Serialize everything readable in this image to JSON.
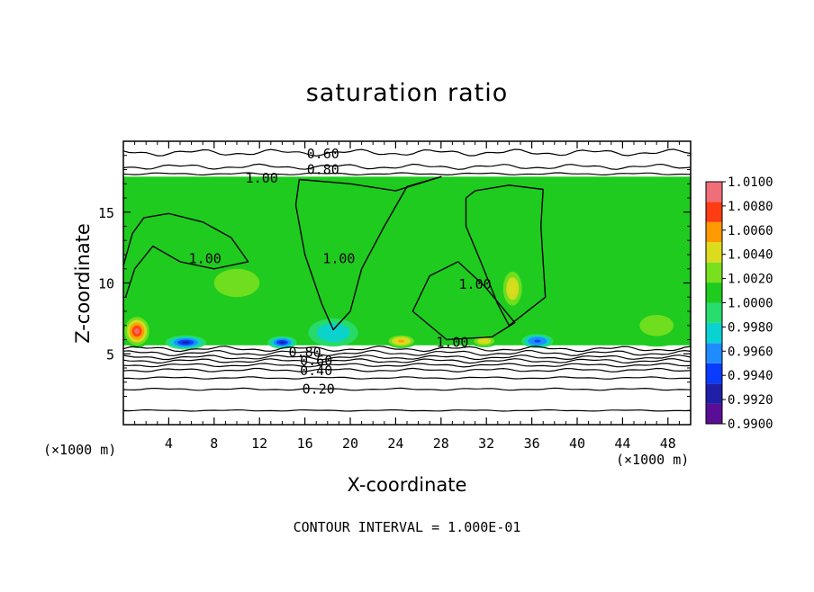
{
  "chart_data": {
    "type": "heatmap",
    "title": "saturation ratio",
    "xlabel": "X-coordinate",
    "ylabel": "Z-coordinate",
    "x_unit_left": "(×1000 m)",
    "x_unit_right": "(×1000 m)",
    "footer": "CONTOUR INTERVAL = 1.000E-01",
    "xlim": [
      0,
      50
    ],
    "ylim": [
      0,
      20
    ],
    "x_ticks": [
      4,
      8,
      12,
      16,
      20,
      24,
      28,
      32,
      36,
      40,
      44,
      48
    ],
    "y_ticks": [
      5,
      10,
      15
    ],
    "x_tick_labels": [
      "4",
      "8",
      "12",
      "16",
      "20",
      "24",
      "28",
      "32",
      "36",
      "40",
      "44",
      "48"
    ],
    "y_tick_labels": [
      "5",
      "10",
      "15"
    ],
    "colorbar": {
      "min": 0.99,
      "max": 1.01,
      "labels": [
        "1.0100",
        "1.0080",
        "1.0060",
        "1.0040",
        "1.0020",
        "1.0000",
        "0.9980",
        "0.9960",
        "0.9940",
        "0.9920",
        "0.9900"
      ],
      "colors": [
        "#5a0e96",
        "#1f1fa8",
        "#0a3cff",
        "#1e8cff",
        "#0ad2d2",
        "#28dc6e",
        "#1ecb1e",
        "#78e01e",
        "#dcdc1e",
        "#ff9a00",
        "#ff3c14",
        "#f06e78"
      ]
    },
    "filled_region": {
      "x": [
        0,
        50
      ],
      "z": [
        5.6,
        17.5
      ],
      "base_value": 1.0
    },
    "anomalies": [
      {
        "x": 1.2,
        "z": 6.6,
        "value": 1.009,
        "rx": 1.3,
        "rz": 1.2
      },
      {
        "x": 34.3,
        "z": 9.6,
        "value": 1.005,
        "rx": 1.1,
        "rz": 1.6
      },
      {
        "x": 24.5,
        "z": 5.9,
        "value": 1.006,
        "rx": 1.4,
        "rz": 0.5
      },
      {
        "x": 31.8,
        "z": 5.9,
        "value": 1.005,
        "rx": 1.2,
        "rz": 0.45
      },
      {
        "x": 5.5,
        "z": 5.8,
        "value": 0.993,
        "rx": 1.8,
        "rz": 0.5
      },
      {
        "x": 14.0,
        "z": 5.8,
        "value": 0.993,
        "rx": 1.3,
        "rz": 0.45
      },
      {
        "x": 36.5,
        "z": 5.9,
        "value": 0.994,
        "rx": 1.4,
        "rz": 0.5
      },
      {
        "x": 18.5,
        "z": 6.5,
        "value": 0.997,
        "rx": 2.2,
        "rz": 1.0
      },
      {
        "x": 10.0,
        "z": 10.0,
        "value": 1.002,
        "rx": 4.0,
        "rz": 2.0
      },
      {
        "x": 47.0,
        "z": 7.0,
        "value": 1.002,
        "rx": 3.0,
        "rz": 1.5
      }
    ],
    "contour_labels": [
      {
        "text": "0.60",
        "x": 17.6,
        "z": 19.1
      },
      {
        "text": "0.80",
        "x": 17.6,
        "z": 18.0
      },
      {
        "text": "1.00",
        "x": 12.2,
        "z": 17.4
      },
      {
        "text": "1.00",
        "x": 7.2,
        "z": 11.7
      },
      {
        "text": "1.00",
        "x": 19.0,
        "z": 11.7
      },
      {
        "text": "1.00",
        "x": 31.0,
        "z": 9.9
      },
      {
        "text": "1.00",
        "x": 29.0,
        "z": 5.8
      },
      {
        "text": "0.80",
        "x": 16.0,
        "z": 5.1
      },
      {
        "text": "0.60",
        "x": 17.0,
        "z": 4.5
      },
      {
        "text": "0.40",
        "x": 17.0,
        "z": 3.8
      },
      {
        "text": "0.20",
        "x": 17.2,
        "z": 2.5
      }
    ],
    "lower_contours": [
      {
        "value": 0.9,
        "z": 5.35,
        "amp": 0.12
      },
      {
        "value": 0.8,
        "z": 5.05,
        "amp": 0.12
      },
      {
        "value": 0.7,
        "z": 4.75,
        "amp": 0.1
      },
      {
        "value": 0.6,
        "z": 4.5,
        "amp": 0.1
      },
      {
        "value": 0.5,
        "z": 4.2,
        "amp": 0.08
      },
      {
        "value": 0.4,
        "z": 3.85,
        "amp": 0.08
      },
      {
        "value": 0.3,
        "z": 3.3,
        "amp": 0.05
      },
      {
        "value": 0.2,
        "z": 2.5,
        "amp": 0.05
      },
      {
        "value": 0.1,
        "z": 1.0,
        "amp": 0.03
      }
    ],
    "upper_contours": [
      {
        "value": 0.6,
        "z": 19.2,
        "amp": 0.15
      },
      {
        "value": 0.8,
        "z": 18.2,
        "amp": 0.12
      },
      {
        "value": 0.9,
        "z": 17.7,
        "amp": 0.05
      }
    ],
    "unity_contours": [
      [
        [
          0,
          11.2
        ],
        [
          0.8,
          13.5
        ],
        [
          1.8,
          14.6
        ],
        [
          4.0,
          14.9
        ],
        [
          7.0,
          14.3
        ],
        [
          9.5,
          13.2
        ],
        [
          11.0,
          11.5
        ],
        [
          8.0,
          11.0
        ],
        [
          5.0,
          11.5
        ],
        [
          2.6,
          12.6
        ],
        [
          1.0,
          11.0
        ],
        [
          0.2,
          9.0
        ]
      ],
      [
        [
          15.5,
          17.3
        ],
        [
          20.0,
          17.0
        ],
        [
          24.0,
          16.5
        ],
        [
          28.0,
          17.5
        ],
        [
          25.0,
          16.8
        ],
        [
          23.0,
          14.0
        ],
        [
          21.0,
          11.0
        ],
        [
          20.0,
          8.0
        ],
        [
          18.5,
          6.7
        ],
        [
          17.5,
          8.5
        ],
        [
          16.0,
          12.0
        ],
        [
          15.2,
          15.5
        ],
        [
          15.5,
          17.3
        ]
      ],
      [
        [
          30.2,
          16.0
        ],
        [
          31.0,
          16.5
        ],
        [
          34.0,
          16.9
        ],
        [
          37.0,
          16.6
        ],
        [
          36.8,
          14.0
        ],
        [
          37.2,
          9.0
        ],
        [
          34.0,
          7.0
        ],
        [
          33.0,
          8.5
        ],
        [
          31.5,
          11.5
        ],
        [
          30.2,
          14.0
        ],
        [
          30.2,
          16.0
        ]
      ],
      [
        [
          25.5,
          8.0
        ],
        [
          28.5,
          6.0
        ],
        [
          32.5,
          6.2
        ],
        [
          34.5,
          7.2
        ],
        [
          31.8,
          9.8
        ],
        [
          29.5,
          11.5
        ],
        [
          27.0,
          10.5
        ],
        [
          25.5,
          8.0
        ]
      ]
    ]
  }
}
